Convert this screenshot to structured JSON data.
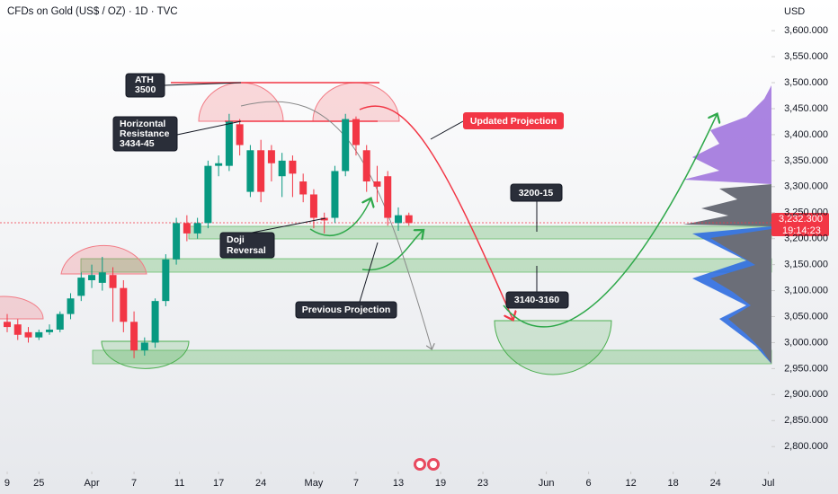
{
  "chart_data": {
    "type": "candlestick",
    "title": "CFDs on Gold (US$ / OZ) · 1D · TVC",
    "currency": "USD",
    "up_color": "#089981",
    "down_color": "#f23645",
    "open": [
      3040,
      3035,
      3020,
      3010,
      3020,
      3025,
      3055,
      3090,
      3120,
      3115,
      3130,
      3105,
      3040,
      2985,
      3000,
      3080,
      3160,
      3230,
      3210,
      3230,
      3340,
      3340,
      3420,
      3290,
      3370,
      3370,
      3320,
      3350,
      3310,
      3285,
      3240,
      3240,
      3330,
      3430,
      3370,
      3310,
      3320,
      3230,
      3245
    ],
    "high": [
      3055,
      3045,
      3030,
      3025,
      3035,
      3060,
      3095,
      3135,
      3150,
      3165,
      3145,
      3120,
      3060,
      3010,
      3085,
      3170,
      3240,
      3245,
      3240,
      3350,
      3360,
      3440,
      3430,
      3380,
      3390,
      3380,
      3365,
      3360,
      3325,
      3295,
      3250,
      3340,
      3440,
      3435,
      3380,
      3340,
      3330,
      3260,
      3250
    ],
    "low": [
      3020,
      3005,
      3000,
      3005,
      3015,
      3020,
      3045,
      3080,
      3105,
      3100,
      3040,
      3020,
      2970,
      2975,
      2990,
      3070,
      3150,
      3195,
      3200,
      3220,
      3320,
      3330,
      3360,
      3280,
      3270,
      3310,
      3280,
      3280,
      3270,
      3220,
      3210,
      3230,
      3320,
      3360,
      3290,
      3270,
      3225,
      3215,
      3225
    ],
    "close": [
      3030,
      3015,
      3010,
      3020,
      3025,
      3055,
      3085,
      3125,
      3130,
      3135,
      3105,
      3040,
      2985,
      3000,
      3080,
      3160,
      3230,
      3210,
      3230,
      3340,
      3345,
      3425,
      3380,
      3370,
      3290,
      3345,
      3350,
      3325,
      3285,
      3240,
      3235,
      3330,
      3430,
      3380,
      3310,
      3300,
      3240,
      3245,
      3230
    ],
    "xlim": [
      -0.68,
      72.3
    ],
    "xticks": [
      {
        "value": 0,
        "label": "9"
      },
      {
        "value": 3,
        "label": "25"
      },
      {
        "value": 8,
        "label": "Apr"
      },
      {
        "value": 12,
        "label": "7"
      },
      {
        "value": 16.3,
        "label": "11"
      },
      {
        "value": 20,
        "label": "17"
      },
      {
        "value": 24,
        "label": "24"
      },
      {
        "value": 29,
        "label": "May"
      },
      {
        "value": 33,
        "label": "7"
      },
      {
        "value": 37,
        "label": "13"
      },
      {
        "value": 41,
        "label": "19"
      },
      {
        "value": 45,
        "label": "23"
      },
      {
        "value": 51,
        "label": "Jun"
      },
      {
        "value": 55,
        "label": "6"
      },
      {
        "value": 59,
        "label": "12"
      },
      {
        "value": 63,
        "label": "18"
      },
      {
        "value": 67,
        "label": "24"
      },
      {
        "value": 72,
        "label": "Jul"
      }
    ],
    "ylim": [
      2752,
      3659
    ],
    "yticks": [
      {
        "value": 2800,
        "label": "2,800.000"
      },
      {
        "value": 2850,
        "label": "2,850.000"
      },
      {
        "value": 2900,
        "label": "2,900.000"
      },
      {
        "value": 2950,
        "label": "2,950.000"
      },
      {
        "value": 3000,
        "label": "3,000.000"
      },
      {
        "value": 3050,
        "label": "3,050.000"
      },
      {
        "value": 3100,
        "label": "3,100.000"
      },
      {
        "value": 3150,
        "label": "3,150.000"
      },
      {
        "value": 3200,
        "label": "3,200.000"
      },
      {
        "value": 3250,
        "label": "3,250.000"
      },
      {
        "value": 3300,
        "label": "3,300.000"
      },
      {
        "value": 3350,
        "label": "3,350.000"
      },
      {
        "value": 3400,
        "label": "3,400.000"
      },
      {
        "value": 3450,
        "label": "3,450.000"
      },
      {
        "value": 3500,
        "label": "3,500.000"
      },
      {
        "value": 3550,
        "label": "3,550.000"
      },
      {
        "value": 3600,
        "label": "3,600.000"
      }
    ],
    "last_price": {
      "value": 3232.3,
      "label": "3,232.300"
    },
    "countdown": "19:14:23",
    "annotations": [
      [
        "ATH",
        "3500"
      ],
      [
        "Horizontal",
        "Resistance",
        "3434-45"
      ],
      [
        "Doji",
        "Reversal"
      ],
      [
        "Previous Projection"
      ],
      [
        "Updated Projection"
      ],
      [
        "3200-15"
      ],
      [
        "3140-3160"
      ]
    ]
  }
}
